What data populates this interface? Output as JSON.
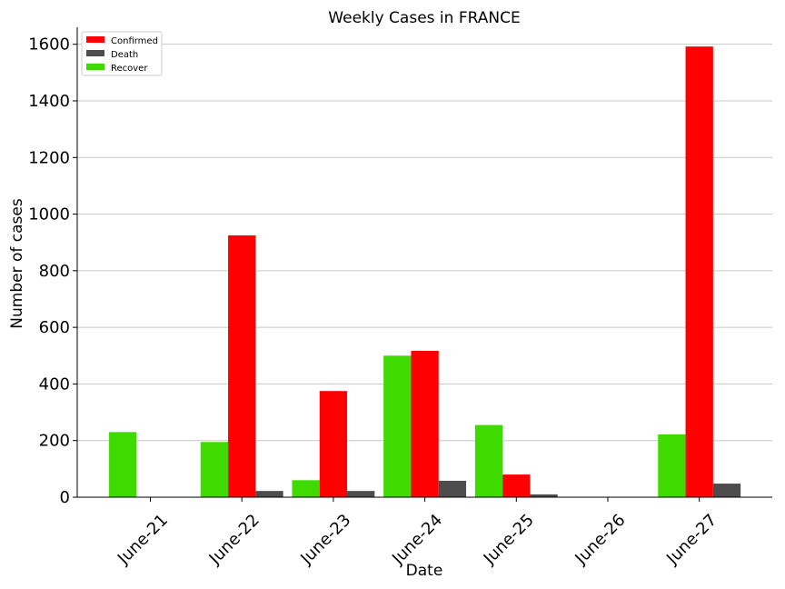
{
  "chart_data": {
    "type": "bar",
    "title": "Weekly Cases in FRANCE",
    "xlabel": "Date",
    "ylabel": "Number of cases",
    "categories": [
      "June-21",
      "June-22",
      "June-23",
      "June-24",
      "June-25",
      "June-26",
      "June-27"
    ],
    "series": [
      {
        "name": "Recover",
        "color": "#3fdb00",
        "values": [
          230,
          195,
          60,
          500,
          255,
          0,
          222
        ]
      },
      {
        "name": "Confirmed",
        "color": "#ff0000",
        "values": [
          0,
          925,
          375,
          517,
          80,
          0,
          1592
        ]
      },
      {
        "name": "Death",
        "color": "#4d4d4d",
        "values": [
          0,
          22,
          22,
          58,
          10,
          0,
          48
        ]
      }
    ],
    "legend_order": [
      "Confirmed",
      "Death",
      "Recover"
    ],
    "ylim": [
      0,
      1660
    ],
    "yticks": [
      0,
      200,
      400,
      600,
      800,
      1000,
      1200,
      1400,
      1600
    ],
    "grid": "horizontal",
    "legend_position": "top-left"
  }
}
